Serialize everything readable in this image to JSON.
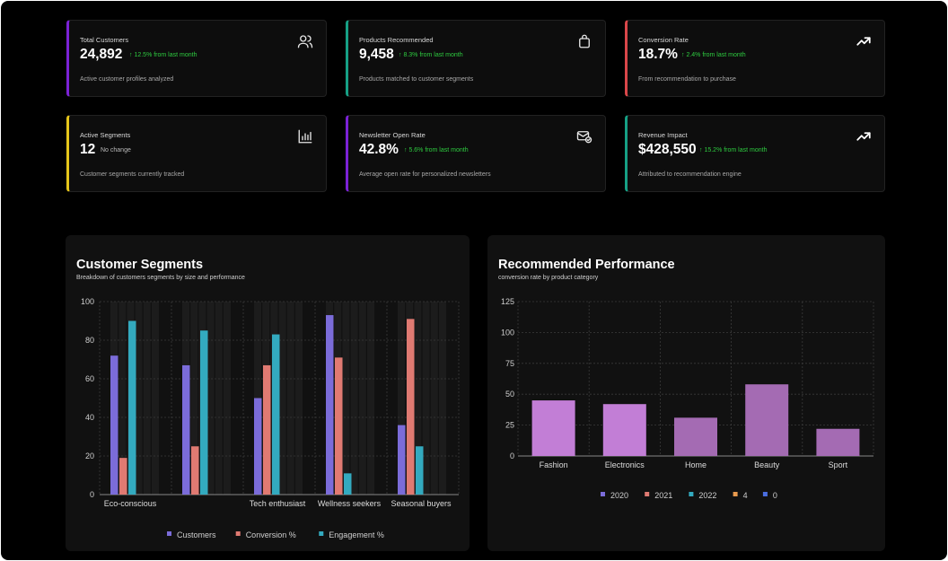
{
  "colors": {
    "purple": "#7b22d6",
    "teal": "#16a085",
    "red": "#d9474a",
    "yellow": "#e5c51a",
    "green_delta": "#2ecc40"
  },
  "cards": [
    {
      "label": "Total Customers",
      "value": "24,892",
      "delta": "↑ 12.5% from last month",
      "desc": "Active customer profiles analyzed",
      "icon": "users-icon"
    },
    {
      "label": "Products Recommended",
      "value": "9,458",
      "delta": "↑ 8.3% from last month",
      "desc": "Products matched to customer segments",
      "icon": "shopping-bag-icon"
    },
    {
      "label": "Conversion Rate",
      "value": "18.7%",
      "delta": "↑ 2.4% from last month",
      "desc": "From recommendation to purchase",
      "icon": "trending-up-icon"
    },
    {
      "label": "Active Segments",
      "value": "12",
      "delta": "No change",
      "desc": "Customer segments currently tracked",
      "icon": "bar-chart-icon"
    },
    {
      "label": "Newsletter Open Rate",
      "value": "42.8%",
      "delta": "↑ 5.6% from last month",
      "desc": "Average open rate for personalized newsletters",
      "icon": "mail-check-icon"
    },
    {
      "label": "Revenue Impact",
      "value": "$428,550",
      "delta": "↑ 15.2% from last month",
      "desc": "Attributed to recommendation engine",
      "icon": "trending-up-icon"
    }
  ],
  "segments_panel": {
    "title": "Customer Segments",
    "subtitle": "Breakdown of customers segments by size and performance"
  },
  "performance_panel": {
    "title": "Recommended Performance",
    "subtitle": "conversion rate by product category"
  },
  "chart_data": [
    {
      "type": "bar",
      "title": "Customer Segments",
      "categories": [
        "Eco-conscious",
        "",
        "Tech enthusiast",
        "Wellness seekers",
        "Seasonal buyers"
      ],
      "ylim": [
        0,
        100
      ],
      "yticks": [
        0,
        20,
        40,
        60,
        80,
        100
      ],
      "series": [
        {
          "name": "Customers",
          "color": "#7b6cd9",
          "values": [
            72,
            67,
            50,
            93,
            36
          ]
        },
        {
          "name": "Conversion %",
          "color": "#e07a72",
          "values": [
            19,
            25,
            67,
            71,
            91
          ]
        },
        {
          "name": "Engagement %",
          "color": "#33aabf",
          "values": [
            90,
            85,
            83,
            11,
            25
          ]
        }
      ],
      "grid": true,
      "legend": "bottom"
    },
    {
      "type": "bar",
      "title": "Recommended Performance",
      "categories": [
        "Fashion",
        "Electronics",
        "Home",
        "Beauty",
        "Sport"
      ],
      "ylim": [
        0,
        125
      ],
      "yticks": [
        0,
        25,
        50,
        75,
        100,
        125
      ],
      "values": [
        45,
        42,
        31,
        58,
        22
      ],
      "bar_colors": [
        "#c27ed6",
        "#c27ed6",
        "#a46bb3",
        "#a46bb3",
        "#a46bb3"
      ],
      "legend_entries": [
        {
          "name": "2020",
          "color": "#7b6cd9"
        },
        {
          "name": "2021",
          "color": "#e07a72"
        },
        {
          "name": "2022",
          "color": "#33aabf"
        },
        {
          "name": "4",
          "color": "#e89a4e"
        },
        {
          "name": "0",
          "color": "#4a6ee0"
        }
      ],
      "grid": true,
      "legend": "bottom"
    }
  ]
}
